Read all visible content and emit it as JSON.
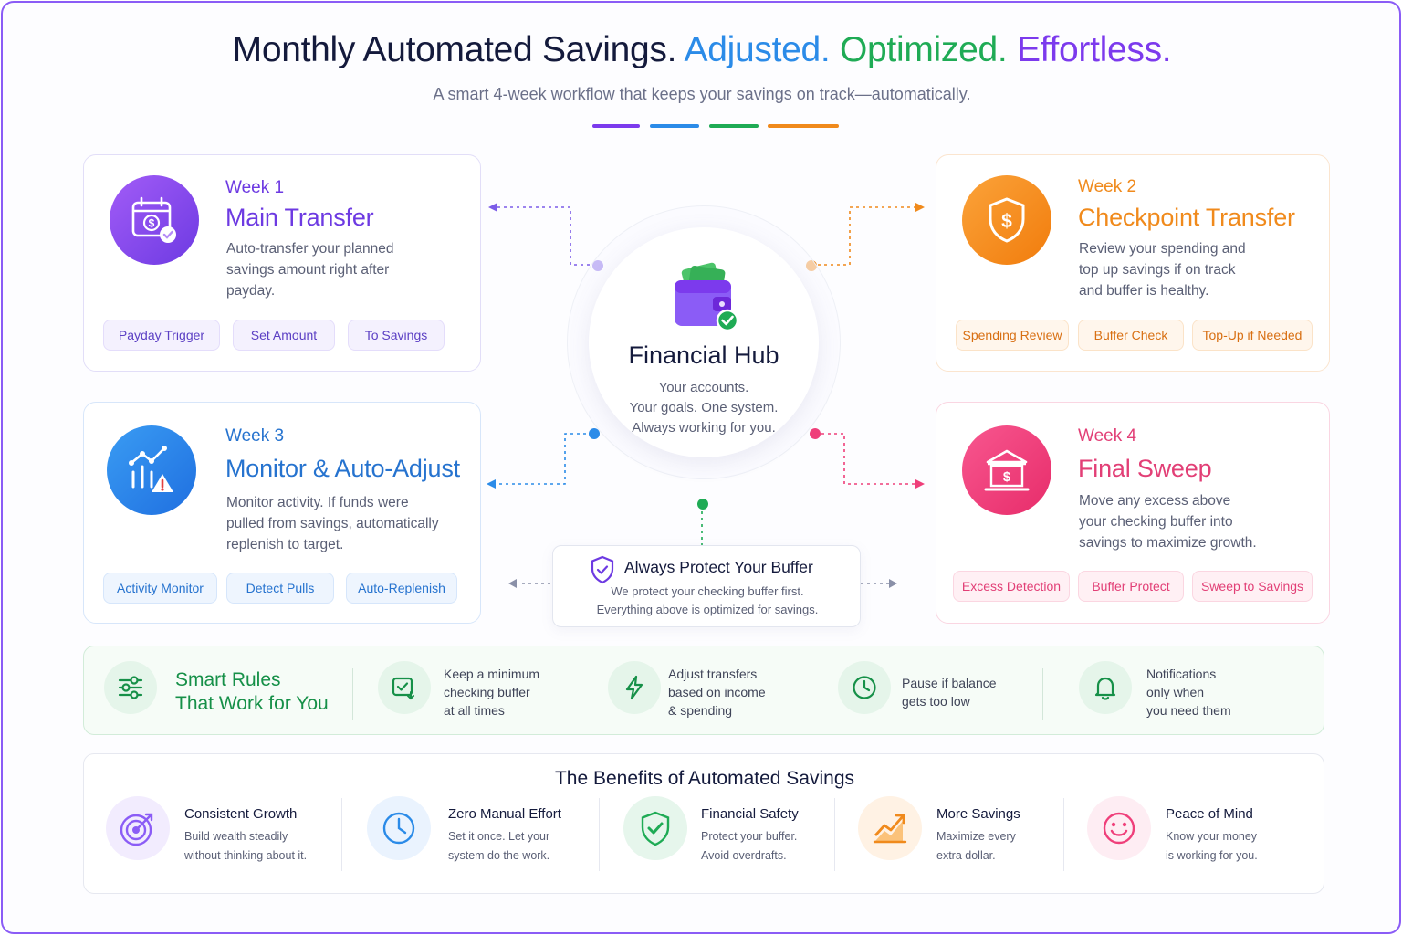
{
  "header": {
    "title_main": "Monthly Automated Savings.",
    "title_adjusted": "Adjusted.",
    "title_optimized": "Optimized.",
    "title_effortless": "Effortless.",
    "subtitle": "A smart 4-week workflow that keeps your savings on track—automatically."
  },
  "colors": {
    "purple": "#7c3aed",
    "orange": "#f08a1c",
    "blue": "#2b8be8",
    "pink": "#ef3f7a",
    "green": "#1fab55"
  },
  "hub": {
    "icon": "wallet-icon",
    "title": "Financial Hub",
    "line1": "Your accounts.",
    "line2": "Your goals. One system.",
    "line3": "Always working for you."
  },
  "weeks": [
    {
      "week": "Week 1",
      "title": "Main Transfer",
      "icon": "calendar-dollar-icon",
      "desc": "Auto-transfer your planned savings amount right after payday.",
      "tags": [
        "Payday  Trigger",
        "Set Amount",
        "To Savings"
      ]
    },
    {
      "week": "Week 2",
      "title": "Checkpoint Transfer",
      "icon": "shield-dollar-icon",
      "desc": "Review your spending and top up savings if on track and buffer is healthy.",
      "tags": [
        "Spending Review",
        "Buffer Check",
        "Top-Up if Needed"
      ]
    },
    {
      "week": "Week 3",
      "title": "Monitor & Auto-Adjust",
      "icon": "chart-alert-icon",
      "desc": "Monitor activity. If funds were pulled from savings, automatically replenish to target.",
      "tags": [
        "Activity Monitor",
        "Detect Pulls",
        "Auto-Replenish"
      ]
    },
    {
      "week": "Week 4",
      "title": "Final Sweep",
      "icon": "bank-icon",
      "desc": "Move any excess above your checking buffer into savings to maximize growth.",
      "tags": [
        "Excess Detection",
        "Buffer Protect",
        "Sweep to Savings"
      ]
    }
  ],
  "buffer": {
    "icon": "shield-check-icon",
    "title": "Always Protect Your Buffer",
    "line1": "We protect your checking buffer first.",
    "line2": "Everything above is optimized for savings."
  },
  "rules": {
    "title_line1": "Smart Rules",
    "title_line2": "That Work for You",
    "items": [
      {
        "icon": "checkbox-arrow-icon",
        "line1": "Keep a minimum",
        "line2": "checking buffer",
        "line3": "at all times"
      },
      {
        "icon": "lightning-icon",
        "line1": "Adjust transfers",
        "line2": "based on income",
        "line3": "& spending"
      },
      {
        "icon": "clock-icon",
        "line1": "Pause if balance",
        "line2": "gets too low",
        "line3": ""
      },
      {
        "icon": "bell-icon",
        "line1": "Notifications",
        "line2": "only when",
        "line3": "you need them"
      }
    ]
  },
  "benefits": {
    "title": "The Benefits of Automated Savings",
    "items": [
      {
        "icon": "target-icon",
        "title": "Consistent Growth",
        "line1": "Build wealth steadily",
        "line2": "without thinking about it."
      },
      {
        "icon": "clock-icon",
        "title": "Zero Manual Effort",
        "line1": "Set it once. Let your",
        "line2": "system do the work."
      },
      {
        "icon": "shield-check-icon",
        "title": "Financial Safety",
        "line1": "Protect your buffer.",
        "line2": "Avoid overdrafts."
      },
      {
        "icon": "growth-chart-icon",
        "title": "More Savings",
        "line1": "Maximize every",
        "line2": "extra dollar."
      },
      {
        "icon": "smile-icon",
        "title": "Peace of Mind",
        "line1": "Know your money",
        "line2": "is working for you."
      }
    ]
  }
}
